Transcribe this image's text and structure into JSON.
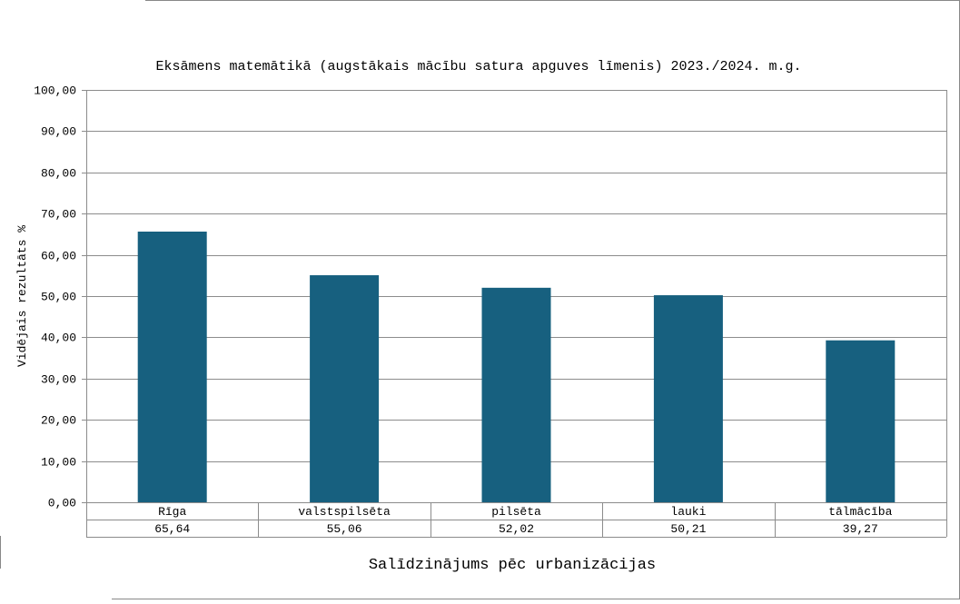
{
  "chart_data": {
    "type": "bar",
    "title": "Eksāmens matemātikā (augstākais mācību satura apguves līmenis) 2023./2024. m.g.",
    "xlabel": "Salīdzinājums pēc urbanizācijas",
    "ylabel": "Vidējais rezultāts %",
    "categories": [
      "Rīga",
      "valstspilsēta",
      "pilsēta",
      "lauki",
      "tālmācība"
    ],
    "values": [
      65.64,
      55.06,
      52.02,
      50.21,
      39.27
    ],
    "value_labels": [
      "65,64",
      "55,06",
      "52,02",
      "50,21",
      "39,27"
    ],
    "ylim": [
      0,
      100
    ],
    "yticks": [
      0,
      10,
      20,
      30,
      40,
      50,
      60,
      70,
      80,
      90,
      100
    ],
    "ytick_labels": [
      "0,00",
      "10,00",
      "20,00",
      "30,00",
      "40,00",
      "50,00",
      "60,00",
      "70,00",
      "80,00",
      "90,00",
      "100,00"
    ],
    "grid": true,
    "legend": "none",
    "data_table": true,
    "bar_color": "#17607f",
    "grid_color": "#8c8c8c"
  }
}
